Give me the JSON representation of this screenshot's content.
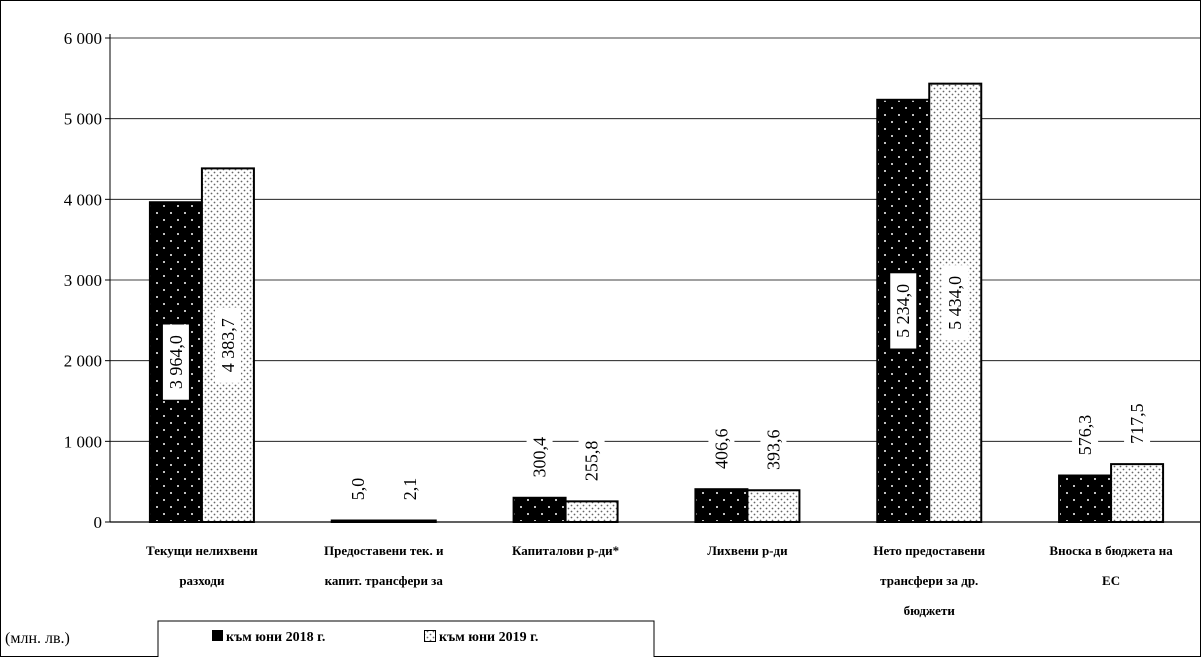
{
  "chart_data": {
    "type": "bar",
    "categories": [
      [
        "Текущи нелихвени",
        "разходи"
      ],
      [
        "Предоставени тек. и",
        "капит. трансфери за"
      ],
      [
        "Капиталови р-ди*"
      ],
      [
        "Лихвени р-ди"
      ],
      [
        "Нето предоставени",
        "трансфери за др.",
        "бюджети"
      ],
      [
        "Вноска в бюджета на",
        "ЕС"
      ]
    ],
    "series": [
      {
        "name": "към юни 2018 г.",
        "values": [
          3964.0,
          5.0,
          300.4,
          406.6,
          5234.0,
          576.3
        ],
        "labels": [
          "3 964,0",
          "5,0",
          "300,4",
          "406,6",
          "5 234,0",
          "576,3"
        ]
      },
      {
        "name": "към юни  2019 г.",
        "values": [
          4383.7,
          2.1,
          255.8,
          393.6,
          5434.0,
          717.5
        ],
        "labels": [
          "4 383,7",
          "2,1",
          "255,8",
          "393,6",
          "5 434,0",
          "717,5"
        ]
      }
    ],
    "ylim": [
      0,
      6000
    ],
    "yticks": [
      0,
      1000,
      2000,
      3000,
      4000,
      5000,
      6000
    ],
    "ytick_labels": [
      "0",
      "1 000",
      "2 000",
      "3 000",
      "4 000",
      "5 000",
      "6 000"
    ],
    "unit_label": "(млн. лв.)",
    "grid": true,
    "legend_position": "bottom"
  },
  "colors": {
    "series_2018": "#000000",
    "series_2019": "#ffffff",
    "grid": "#000000"
  }
}
